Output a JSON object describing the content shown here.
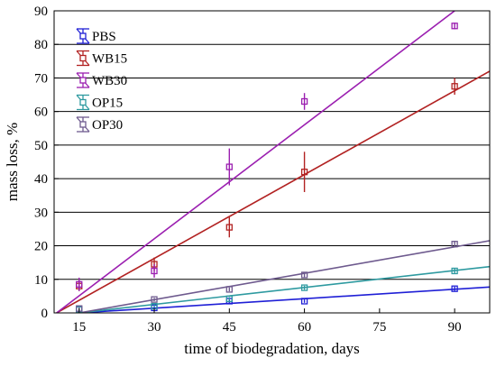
{
  "chart_data": {
    "type": "scatter",
    "title": "",
    "xlabel": "time of biodegradation, days",
    "ylabel": "mass loss, %",
    "xlim": [
      10,
      97
    ],
    "ylim": [
      0,
      90
    ],
    "xticks": [
      15,
      30,
      45,
      60,
      75,
      90
    ],
    "yticks": [
      0,
      10,
      20,
      30,
      40,
      50,
      60,
      70,
      80,
      90
    ],
    "grid": "horizontal",
    "legend": "top-left",
    "series": [
      {
        "name": "PBS",
        "color": "#1f1fd6",
        "points": [
          {
            "x": 15,
            "y": 1.0,
            "err": 0.4
          },
          {
            "x": 30,
            "y": 1.5,
            "err": 0.4
          },
          {
            "x": 45,
            "y": 3.5,
            "err": 0.5
          },
          {
            "x": 60,
            "y": 3.5,
            "err": 0.5
          },
          {
            "x": 90,
            "y": 7.2,
            "err": 0.6
          }
        ],
        "fit": {
          "x": [
            15,
            97
          ],
          "y": [
            0.0,
            7.7
          ]
        }
      },
      {
        "name": "WB15",
        "color": "#b22222",
        "points": [
          {
            "x": 15,
            "y": 8.0,
            "err": 1.5
          },
          {
            "x": 30,
            "y": 14.5,
            "err": 2.0
          },
          {
            "x": 45,
            "y": 25.5,
            "err": 3.0
          },
          {
            "x": 60,
            "y": 42.0,
            "err": 6.0
          },
          {
            "x": 90,
            "y": 67.5,
            "err": 2.5
          }
        ],
        "fit": {
          "x": [
            10.5,
            97
          ],
          "y": [
            0.0,
            72.0
          ]
        }
      },
      {
        "name": "WB30",
        "color": "#9b1fb0",
        "points": [
          {
            "x": 15,
            "y": 8.5,
            "err": 2.0
          },
          {
            "x": 30,
            "y": 12.5,
            "err": 2.0
          },
          {
            "x": 45,
            "y": 43.5,
            "err": 5.5
          },
          {
            "x": 60,
            "y": 63.0,
            "err": 2.5
          },
          {
            "x": 90,
            "y": 85.5,
            "err": 1.0
          }
        ],
        "fit": {
          "x": [
            10.5,
            90
          ],
          "y": [
            0.0,
            90.0
          ]
        }
      },
      {
        "name": "OP15",
        "color": "#2e9aa0",
        "points": [
          {
            "x": 15,
            "y": 1.0,
            "err": 0.4
          },
          {
            "x": 30,
            "y": 2.0,
            "err": 0.4
          },
          {
            "x": 45,
            "y": 4.2,
            "err": 0.5
          },
          {
            "x": 60,
            "y": 7.5,
            "err": 0.6
          },
          {
            "x": 90,
            "y": 12.5,
            "err": 0.7
          }
        ],
        "fit": {
          "x": [
            15,
            97
          ],
          "y": [
            0.0,
            13.8
          ]
        }
      },
      {
        "name": "OP30",
        "color": "#6e5a8e",
        "points": [
          {
            "x": 15,
            "y": 1.3,
            "err": 0.4
          },
          {
            "x": 30,
            "y": 4.0,
            "err": 0.5
          },
          {
            "x": 45,
            "y": 7.0,
            "err": 0.6
          },
          {
            "x": 60,
            "y": 11.3,
            "err": 0.7
          },
          {
            "x": 90,
            "y": 20.5,
            "err": 1.0
          }
        ],
        "fit": {
          "x": [
            15,
            97
          ],
          "y": [
            0.0,
            21.5
          ]
        }
      }
    ]
  }
}
